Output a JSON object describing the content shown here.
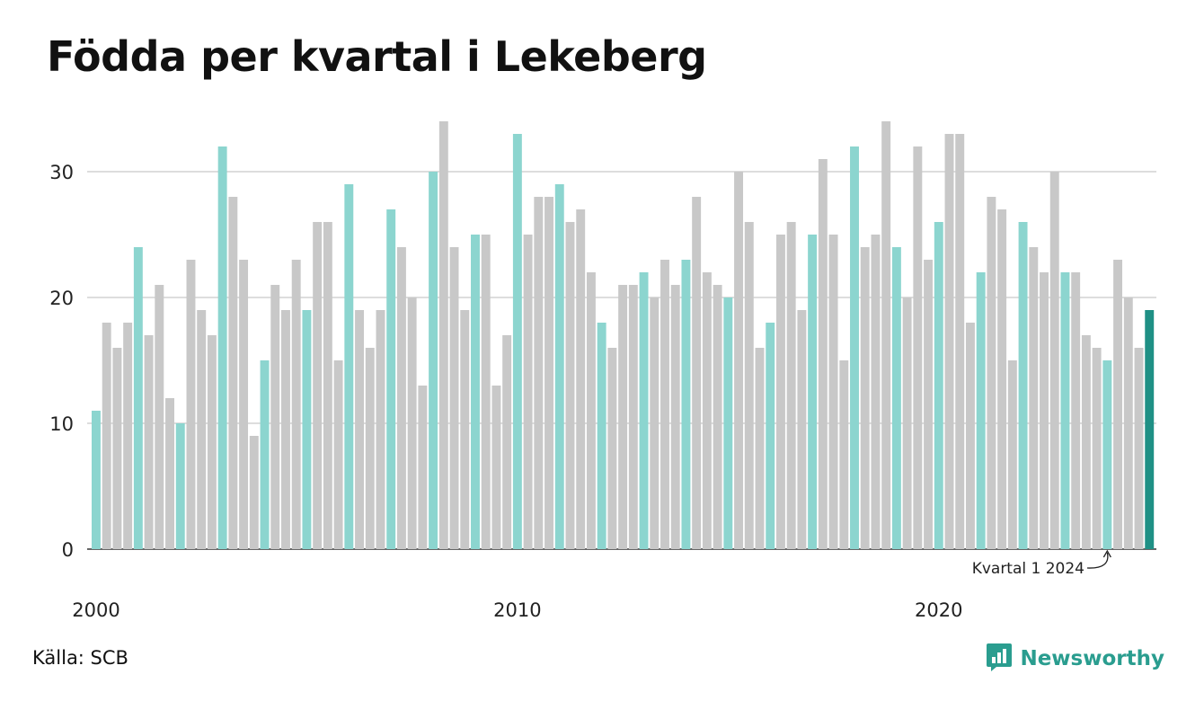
{
  "title": "Födda per kvartal i Lekeberg",
  "source": "Källa: SCB",
  "brand": "Newsworthy",
  "colors": {
    "first_quarter": "#8cd5cf",
    "other_quarter": "#c8c8c8",
    "latest": "#1f9085",
    "gridline": "#dddddd",
    "axis": "#333333",
    "brand": "#2a9d8f"
  },
  "icons": {
    "brand_logo": "newsworthy-logo-icon",
    "annotation_arrow": "curved-arrow-icon"
  },
  "chart_data": {
    "type": "bar",
    "title": "Födda per kvartal i Lekeberg",
    "xlabel": "",
    "ylabel": "",
    "ylim": [
      0,
      34
    ],
    "yticks": [
      0,
      10,
      20,
      30
    ],
    "xtick_labels": [
      "2000",
      "2010",
      "2020"
    ],
    "grid": true,
    "highlight": "first quarter of each year; latest value highlighted",
    "annotation": "Kvartal 1 2024",
    "start_year": 2000,
    "values": [
      11,
      18,
      16,
      18,
      24,
      17,
      21,
      12,
      10,
      23,
      19,
      17,
      32,
      28,
      23,
      9,
      15,
      21,
      19,
      23,
      19,
      26,
      26,
      15,
      29,
      19,
      16,
      19,
      27,
      24,
      20,
      13,
      30,
      34,
      24,
      19,
      25,
      25,
      13,
      17,
      33,
      25,
      28,
      28,
      29,
      26,
      27,
      22,
      18,
      16,
      21,
      21,
      22,
      20,
      23,
      21,
      23,
      28,
      22,
      21,
      20,
      30,
      26,
      16,
      18,
      25,
      26,
      19,
      25,
      31,
      25,
      15,
      32,
      24,
      25,
      34,
      24,
      20,
      32,
      23,
      26,
      33,
      33,
      18,
      22,
      28,
      27,
      15,
      26,
      24,
      22,
      30,
      22,
      22,
      17,
      16,
      15,
      23,
      20,
      16,
      19
    ]
  }
}
